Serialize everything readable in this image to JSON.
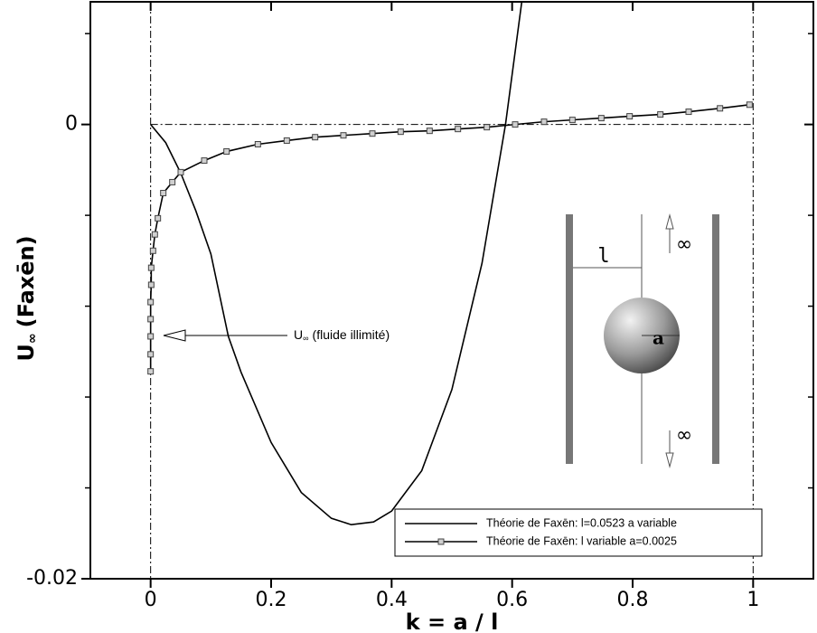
{
  "chart_data": {
    "type": "line",
    "x_label": "k = a / l",
    "y_label": {
      "symbol": "U",
      "subscript": "∞",
      "text": "(Faxēn)"
    },
    "annotation": {
      "symbol": "U",
      "subscript": "∞",
      "text": "(fluide illimité)"
    },
    "xlim": [
      -0.1,
      1.1
    ],
    "ylim": [
      -0.02,
      0.0054
    ],
    "xticks": [
      0,
      0.2,
      0.4,
      0.6,
      0.8,
      1
    ],
    "yticks": [
      -0.02,
      0
    ],
    "yminorticks": [
      -0.016,
      -0.012,
      -0.008,
      -0.004,
      0.004
    ],
    "series": [
      {
        "name": "Théorie de Faxēn: l=0.0523 a variable",
        "color": "#000000",
        "marker": false,
        "x": [
          0,
          0.025,
          0.05,
          0.075,
          0.1,
          0.129,
          0.15,
          0.2,
          0.25,
          0.3,
          0.333,
          0.37,
          0.4,
          0.45,
          0.5,
          0.55,
          0.589,
          0.616
        ],
        "values": [
          0,
          -0.0008,
          -0.00214,
          -0.0038,
          -0.0057,
          -0.00933,
          -0.0109,
          -0.014,
          -0.0162,
          -0.01734,
          -0.01762,
          -0.0175,
          -0.01702,
          -0.01524,
          -0.01167,
          -0.00611,
          0,
          0.0054
        ]
      },
      {
        "name": "Théorie de Faxēn: l variable a=0.0025",
        "color": "#000000",
        "marker": true,
        "x": [
          0,
          0,
          0,
          0,
          0,
          0.001,
          0.001,
          0.004,
          0.007,
          0.012,
          0.021,
          0.036,
          0.05,
          0.089,
          0.126,
          0.178,
          0.226,
          0.273,
          0.32,
          0.368,
          0.415,
          0.463,
          0.51,
          0.558,
          0.605,
          0.653,
          0.7,
          0.748,
          0.795,
          0.846,
          0.893,
          0.945,
          0.994
        ],
        "values": [
          -0.01087,
          -0.01012,
          -0.00933,
          -0.00857,
          -0.00782,
          -0.00706,
          -0.00631,
          -0.00556,
          -0.00484,
          -0.00413,
          -0.00302,
          -0.00254,
          -0.0021,
          -0.00159,
          -0.00119,
          -0.00087,
          -0.00071,
          -0.00056,
          -0.00048,
          -0.0004,
          -0.00032,
          -0.00028,
          -0.0002,
          -0.00012,
          0,
          0.00012,
          0.0002,
          0.00028,
          0.00036,
          0.00044,
          0.00056,
          0.00071,
          0.00087
        ]
      }
    ]
  },
  "inset": {
    "distance_label": "l",
    "radius_label": "a",
    "top_label": "∞",
    "bottom_label": "∞"
  }
}
